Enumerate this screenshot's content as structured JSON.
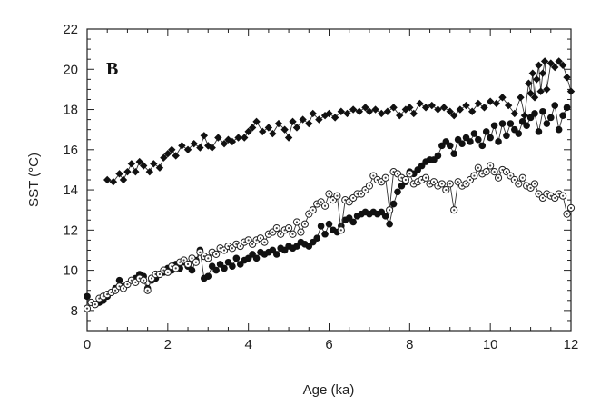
{
  "chart_data": {
    "type": "scatter",
    "panel_label": "B",
    "title": "",
    "xlabel": "Age (ka)",
    "ylabel": "SST (°C)",
    "xlim": [
      0,
      12
    ],
    "ylim": [
      7,
      22
    ],
    "xticks": [
      0,
      2,
      4,
      6,
      8,
      10,
      12
    ],
    "yticks": [
      8,
      10,
      12,
      14,
      16,
      18,
      20,
      22
    ],
    "xtick_labels": [
      "0",
      "2",
      "4",
      "6",
      "8",
      "10",
      "12"
    ],
    "ytick_labels": [
      "8",
      "10",
      "12",
      "14",
      "16",
      "18",
      "20",
      "22"
    ],
    "grid": false,
    "series": [
      {
        "name": "diamond series",
        "marker": "diamond",
        "line": true,
        "x": [
          0.5,
          0.65,
          0.8,
          0.9,
          1.0,
          1.1,
          1.2,
          1.3,
          1.4,
          1.55,
          1.65,
          1.8,
          1.9,
          2.0,
          2.1,
          2.2,
          2.35,
          2.5,
          2.65,
          2.8,
          2.9,
          3.0,
          3.1,
          3.25,
          3.4,
          3.5,
          3.6,
          3.75,
          3.9,
          4.0,
          4.1,
          4.2,
          4.35,
          4.5,
          4.6,
          4.75,
          4.9,
          5.0,
          5.1,
          5.2,
          5.35,
          5.5,
          5.6,
          5.75,
          5.9,
          6.0,
          6.15,
          6.3,
          6.45,
          6.6,
          6.75,
          6.9,
          7.0,
          7.15,
          7.3,
          7.45,
          7.6,
          7.75,
          7.9,
          8.0,
          8.1,
          8.25,
          8.4,
          8.55,
          8.7,
          8.85,
          9.0,
          9.1,
          9.25,
          9.4,
          9.55,
          9.7,
          9.85,
          10.0,
          10.15,
          10.3,
          10.45,
          10.6,
          10.75,
          10.85,
          10.95,
          11.0,
          11.05,
          11.1,
          11.15,
          11.2,
          11.25,
          11.3,
          11.35,
          11.4,
          11.5,
          11.6,
          11.7,
          11.8,
          11.9,
          12.0
        ],
        "y": [
          14.5,
          14.4,
          14.8,
          14.5,
          14.9,
          15.3,
          14.9,
          15.4,
          15.2,
          14.9,
          15.3,
          15.1,
          15.6,
          15.8,
          16.0,
          15.7,
          16.2,
          16.0,
          16.3,
          16.1,
          16.7,
          16.2,
          16.1,
          16.6,
          16.3,
          16.5,
          16.4,
          16.6,
          16.6,
          16.9,
          17.1,
          17.4,
          16.9,
          17.1,
          16.8,
          17.3,
          17.0,
          16.6,
          17.4,
          17.1,
          17.5,
          17.3,
          17.8,
          17.5,
          17.7,
          17.8,
          17.6,
          17.9,
          17.8,
          18.0,
          17.9,
          18.1,
          17.9,
          18.0,
          17.8,
          17.9,
          18.1,
          17.7,
          18.0,
          18.1,
          17.8,
          18.3,
          18.1,
          18.2,
          18.0,
          18.1,
          17.9,
          17.7,
          18.0,
          18.2,
          17.9,
          18.3,
          18.1,
          18.4,
          18.3,
          18.6,
          18.2,
          17.8,
          18.6,
          17.7,
          19.3,
          18.8,
          19.8,
          18.6,
          19.5,
          20.2,
          18.9,
          19.8,
          20.4,
          19.0,
          20.3,
          20.1,
          20.4,
          20.2,
          19.6,
          18.9
        ]
      },
      {
        "name": "filled circle series",
        "marker": "filled-circle",
        "line": true,
        "x": [
          0.0,
          0.1,
          0.2,
          0.3,
          0.4,
          0.5,
          0.6,
          0.7,
          0.8,
          0.9,
          1.0,
          1.1,
          1.2,
          1.3,
          1.4,
          1.5,
          1.6,
          1.7,
          1.8,
          1.9,
          2.0,
          2.1,
          2.2,
          2.3,
          2.4,
          2.5,
          2.6,
          2.7,
          2.8,
          2.9,
          3.0,
          3.1,
          3.2,
          3.3,
          3.4,
          3.5,
          3.6,
          3.7,
          3.8,
          3.9,
          4.0,
          4.1,
          4.2,
          4.3,
          4.4,
          4.5,
          4.6,
          4.7,
          4.8,
          4.9,
          5.0,
          5.1,
          5.2,
          5.3,
          5.4,
          5.5,
          5.6,
          5.7,
          5.8,
          5.9,
          6.0,
          6.1,
          6.2,
          6.3,
          6.4,
          6.5,
          6.6,
          6.7,
          6.8,
          6.9,
          7.0,
          7.1,
          7.2,
          7.3,
          7.4,
          7.5,
          7.6,
          7.7,
          7.8,
          7.9,
          8.0,
          8.1,
          8.2,
          8.3,
          8.4,
          8.5,
          8.6,
          8.7,
          8.8,
          8.9,
          9.0,
          9.1,
          9.2,
          9.3,
          9.4,
          9.5,
          9.6,
          9.7,
          9.8,
          9.9,
          10.0,
          10.1,
          10.2,
          10.3,
          10.4,
          10.5,
          10.6,
          10.7,
          10.8,
          10.9,
          11.0,
          11.1,
          11.2,
          11.3,
          11.4,
          11.5,
          11.6,
          11.7,
          11.8,
          11.9
        ],
        "y": [
          8.7,
          8.4,
          8.3,
          8.4,
          8.5,
          8.7,
          8.9,
          9.1,
          9.5,
          9.2,
          9.3,
          9.5,
          9.6,
          9.8,
          9.7,
          9.1,
          9.5,
          9.6,
          9.8,
          9.9,
          10.1,
          10.0,
          10.3,
          10.1,
          10.4,
          10.2,
          10.0,
          10.5,
          11.0,
          9.6,
          9.7,
          10.2,
          10.0,
          10.3,
          10.1,
          10.4,
          10.2,
          10.6,
          10.3,
          10.5,
          10.6,
          10.8,
          10.6,
          10.9,
          10.8,
          10.9,
          11.0,
          10.8,
          11.1,
          11.0,
          11.2,
          11.1,
          11.2,
          11.4,
          11.3,
          11.2,
          11.4,
          11.6,
          12.2,
          11.8,
          12.3,
          12.0,
          11.9,
          12.2,
          12.5,
          12.6,
          12.4,
          12.7,
          12.8,
          12.9,
          12.8,
          12.9,
          12.8,
          12.9,
          12.7,
          12.3,
          13.3,
          13.9,
          14.2,
          14.4,
          14.9,
          14.8,
          15.0,
          15.2,
          15.4,
          15.5,
          15.5,
          15.7,
          16.2,
          16.4,
          16.2,
          15.8,
          16.5,
          16.3,
          16.6,
          16.4,
          16.8,
          16.5,
          16.2,
          16.9,
          16.6,
          17.2,
          16.4,
          17.3,
          16.7,
          17.3,
          17.0,
          16.8,
          17.4,
          17.2,
          17.6,
          17.8,
          16.9,
          17.9,
          17.3,
          17.6,
          18.2,
          17.0,
          17.7,
          18.1
        ]
      },
      {
        "name": "open circle series",
        "marker": "open-circle",
        "line": true,
        "x": [
          0.0,
          0.1,
          0.2,
          0.3,
          0.4,
          0.5,
          0.6,
          0.7,
          0.8,
          0.9,
          1.0,
          1.1,
          1.2,
          1.3,
          1.4,
          1.5,
          1.6,
          1.7,
          1.8,
          1.9,
          2.0,
          2.1,
          2.2,
          2.3,
          2.4,
          2.5,
          2.6,
          2.7,
          2.8,
          2.9,
          3.0,
          3.1,
          3.2,
          3.3,
          3.4,
          3.5,
          3.6,
          3.7,
          3.8,
          3.9,
          4.0,
          4.1,
          4.2,
          4.3,
          4.4,
          4.5,
          4.6,
          4.7,
          4.8,
          4.9,
          5.0,
          5.1,
          5.2,
          5.3,
          5.4,
          5.5,
          5.6,
          5.7,
          5.8,
          5.9,
          6.0,
          6.1,
          6.2,
          6.3,
          6.4,
          6.5,
          6.6,
          6.7,
          6.8,
          6.9,
          7.0,
          7.1,
          7.2,
          7.3,
          7.4,
          7.5,
          7.6,
          7.7,
          7.8,
          7.9,
          8.0,
          8.1,
          8.2,
          8.3,
          8.4,
          8.5,
          8.6,
          8.7,
          8.8,
          8.9,
          9.0,
          9.1,
          9.2,
          9.3,
          9.4,
          9.5,
          9.6,
          9.7,
          9.8,
          9.9,
          10.0,
          10.1,
          10.2,
          10.3,
          10.4,
          10.5,
          10.6,
          10.7,
          10.8,
          10.9,
          11.0,
          11.1,
          11.2,
          11.3,
          11.4,
          11.5,
          11.6,
          11.7,
          11.8,
          11.9,
          12.0
        ],
        "y": [
          8.1,
          8.4,
          8.3,
          8.6,
          8.7,
          8.8,
          8.9,
          9.0,
          9.2,
          9.1,
          9.3,
          9.5,
          9.4,
          9.6,
          9.5,
          9.0,
          9.6,
          9.8,
          9.8,
          10.0,
          9.9,
          10.2,
          10.1,
          10.4,
          10.5,
          10.3,
          10.6,
          10.4,
          10.9,
          10.7,
          10.6,
          10.9,
          10.8,
          11.1,
          11.0,
          11.2,
          11.1,
          11.3,
          11.2,
          11.4,
          11.5,
          11.3,
          11.5,
          11.6,
          11.4,
          11.8,
          11.9,
          12.1,
          11.8,
          12.0,
          12.1,
          11.8,
          12.4,
          11.9,
          12.3,
          12.8,
          13.0,
          13.3,
          13.4,
          13.2,
          13.8,
          13.5,
          13.7,
          12.0,
          13.5,
          13.4,
          13.6,
          13.8,
          13.8,
          14.0,
          14.2,
          14.7,
          14.5,
          14.4,
          14.6,
          13.0,
          14.9,
          14.8,
          14.6,
          14.5,
          14.8,
          14.3,
          14.4,
          14.5,
          14.6,
          14.3,
          14.4,
          14.2,
          14.3,
          14.0,
          14.3,
          13.0,
          14.4,
          14.2,
          14.3,
          14.5,
          14.7,
          15.1,
          14.8,
          14.9,
          15.2,
          14.9,
          14.6,
          15.0,
          14.9,
          14.7,
          14.5,
          14.3,
          14.6,
          14.2,
          14.1,
          14.3,
          13.8,
          13.6,
          13.8,
          13.7,
          13.6,
          13.8,
          13.7,
          12.8,
          13.1
        ]
      }
    ]
  }
}
